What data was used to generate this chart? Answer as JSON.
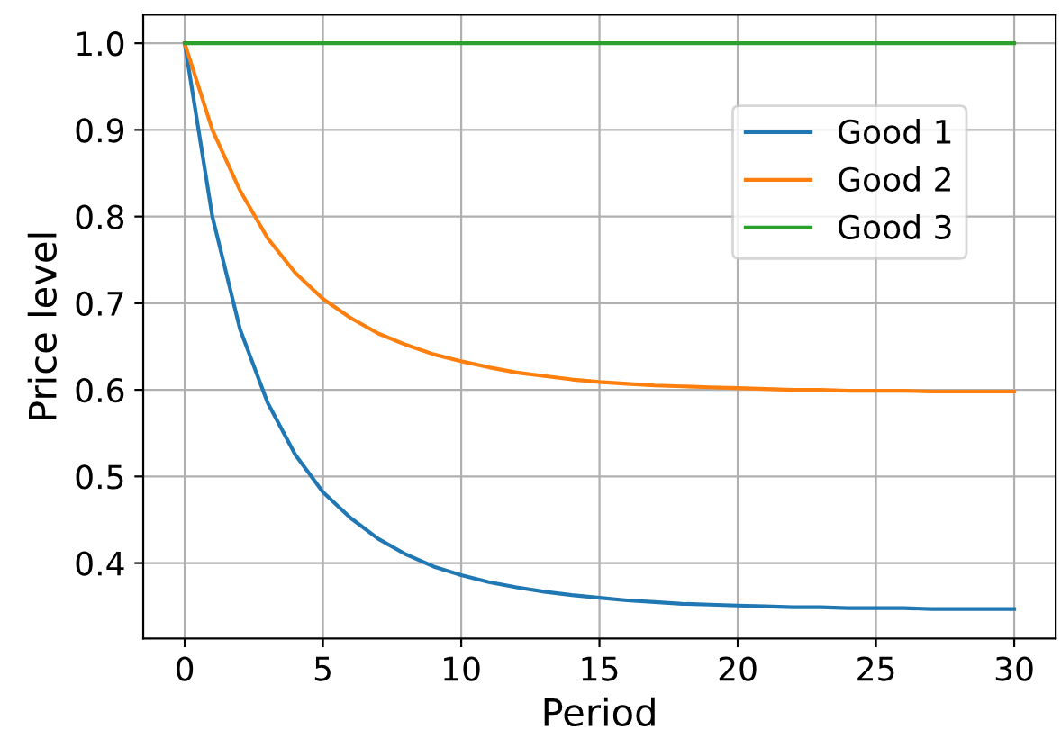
{
  "chart_data": {
    "type": "line",
    "xlabel": "Period",
    "ylabel": "Price level",
    "x": [
      0,
      1,
      2,
      3,
      4,
      5,
      6,
      7,
      8,
      9,
      10,
      11,
      12,
      13,
      14,
      15,
      16,
      17,
      18,
      19,
      20,
      21,
      22,
      23,
      24,
      25,
      26,
      27,
      28,
      29,
      30
    ],
    "series": [
      {
        "name": "Good 1",
        "color": "#1f77b4",
        "values": [
          1.0,
          0.8,
          0.67,
          0.585,
          0.525,
          0.482,
          0.452,
          0.428,
          0.41,
          0.396,
          0.386,
          0.378,
          0.372,
          0.367,
          0.363,
          0.36,
          0.357,
          0.355,
          0.353,
          0.352,
          0.351,
          0.35,
          0.349,
          0.349,
          0.348,
          0.348,
          0.348,
          0.347,
          0.347,
          0.347,
          0.347
        ]
      },
      {
        "name": "Good 2",
        "color": "#ff7f0e",
        "values": [
          1.0,
          0.9,
          0.83,
          0.775,
          0.735,
          0.705,
          0.683,
          0.665,
          0.652,
          0.641,
          0.633,
          0.626,
          0.62,
          0.616,
          0.612,
          0.609,
          0.607,
          0.605,
          0.604,
          0.603,
          0.602,
          0.601,
          0.6,
          0.6,
          0.599,
          0.599,
          0.599,
          0.598,
          0.598,
          0.598,
          0.598
        ]
      },
      {
        "name": "Good 3",
        "color": "#2ca02c",
        "values": [
          1.0,
          1.0,
          1.0,
          1.0,
          1.0,
          1.0,
          1.0,
          1.0,
          1.0,
          1.0,
          1.0,
          1.0,
          1.0,
          1.0,
          1.0,
          1.0,
          1.0,
          1.0,
          1.0,
          1.0,
          1.0,
          1.0,
          1.0,
          1.0,
          1.0,
          1.0,
          1.0,
          1.0,
          1.0,
          1.0,
          1.0
        ]
      }
    ],
    "xlim": [
      -1.5,
      31.5
    ],
    "ylim": [
      0.313,
      1.033
    ],
    "xticks": [
      0,
      5,
      10,
      15,
      20,
      25,
      30
    ],
    "yticks": [
      {
        "value": 0.4,
        "label": "0.4"
      },
      {
        "value": 0.5,
        "label": "0.5"
      },
      {
        "value": 0.6,
        "label": "0.6"
      },
      {
        "value": 0.7,
        "label": "0.7"
      },
      {
        "value": 0.8,
        "label": "0.8"
      },
      {
        "value": 0.9,
        "label": "0.9"
      },
      {
        "value": 1.0,
        "label": "1.0"
      }
    ],
    "grid": true,
    "legend": "top right",
    "line_style": "solid",
    "marker": "none"
  }
}
